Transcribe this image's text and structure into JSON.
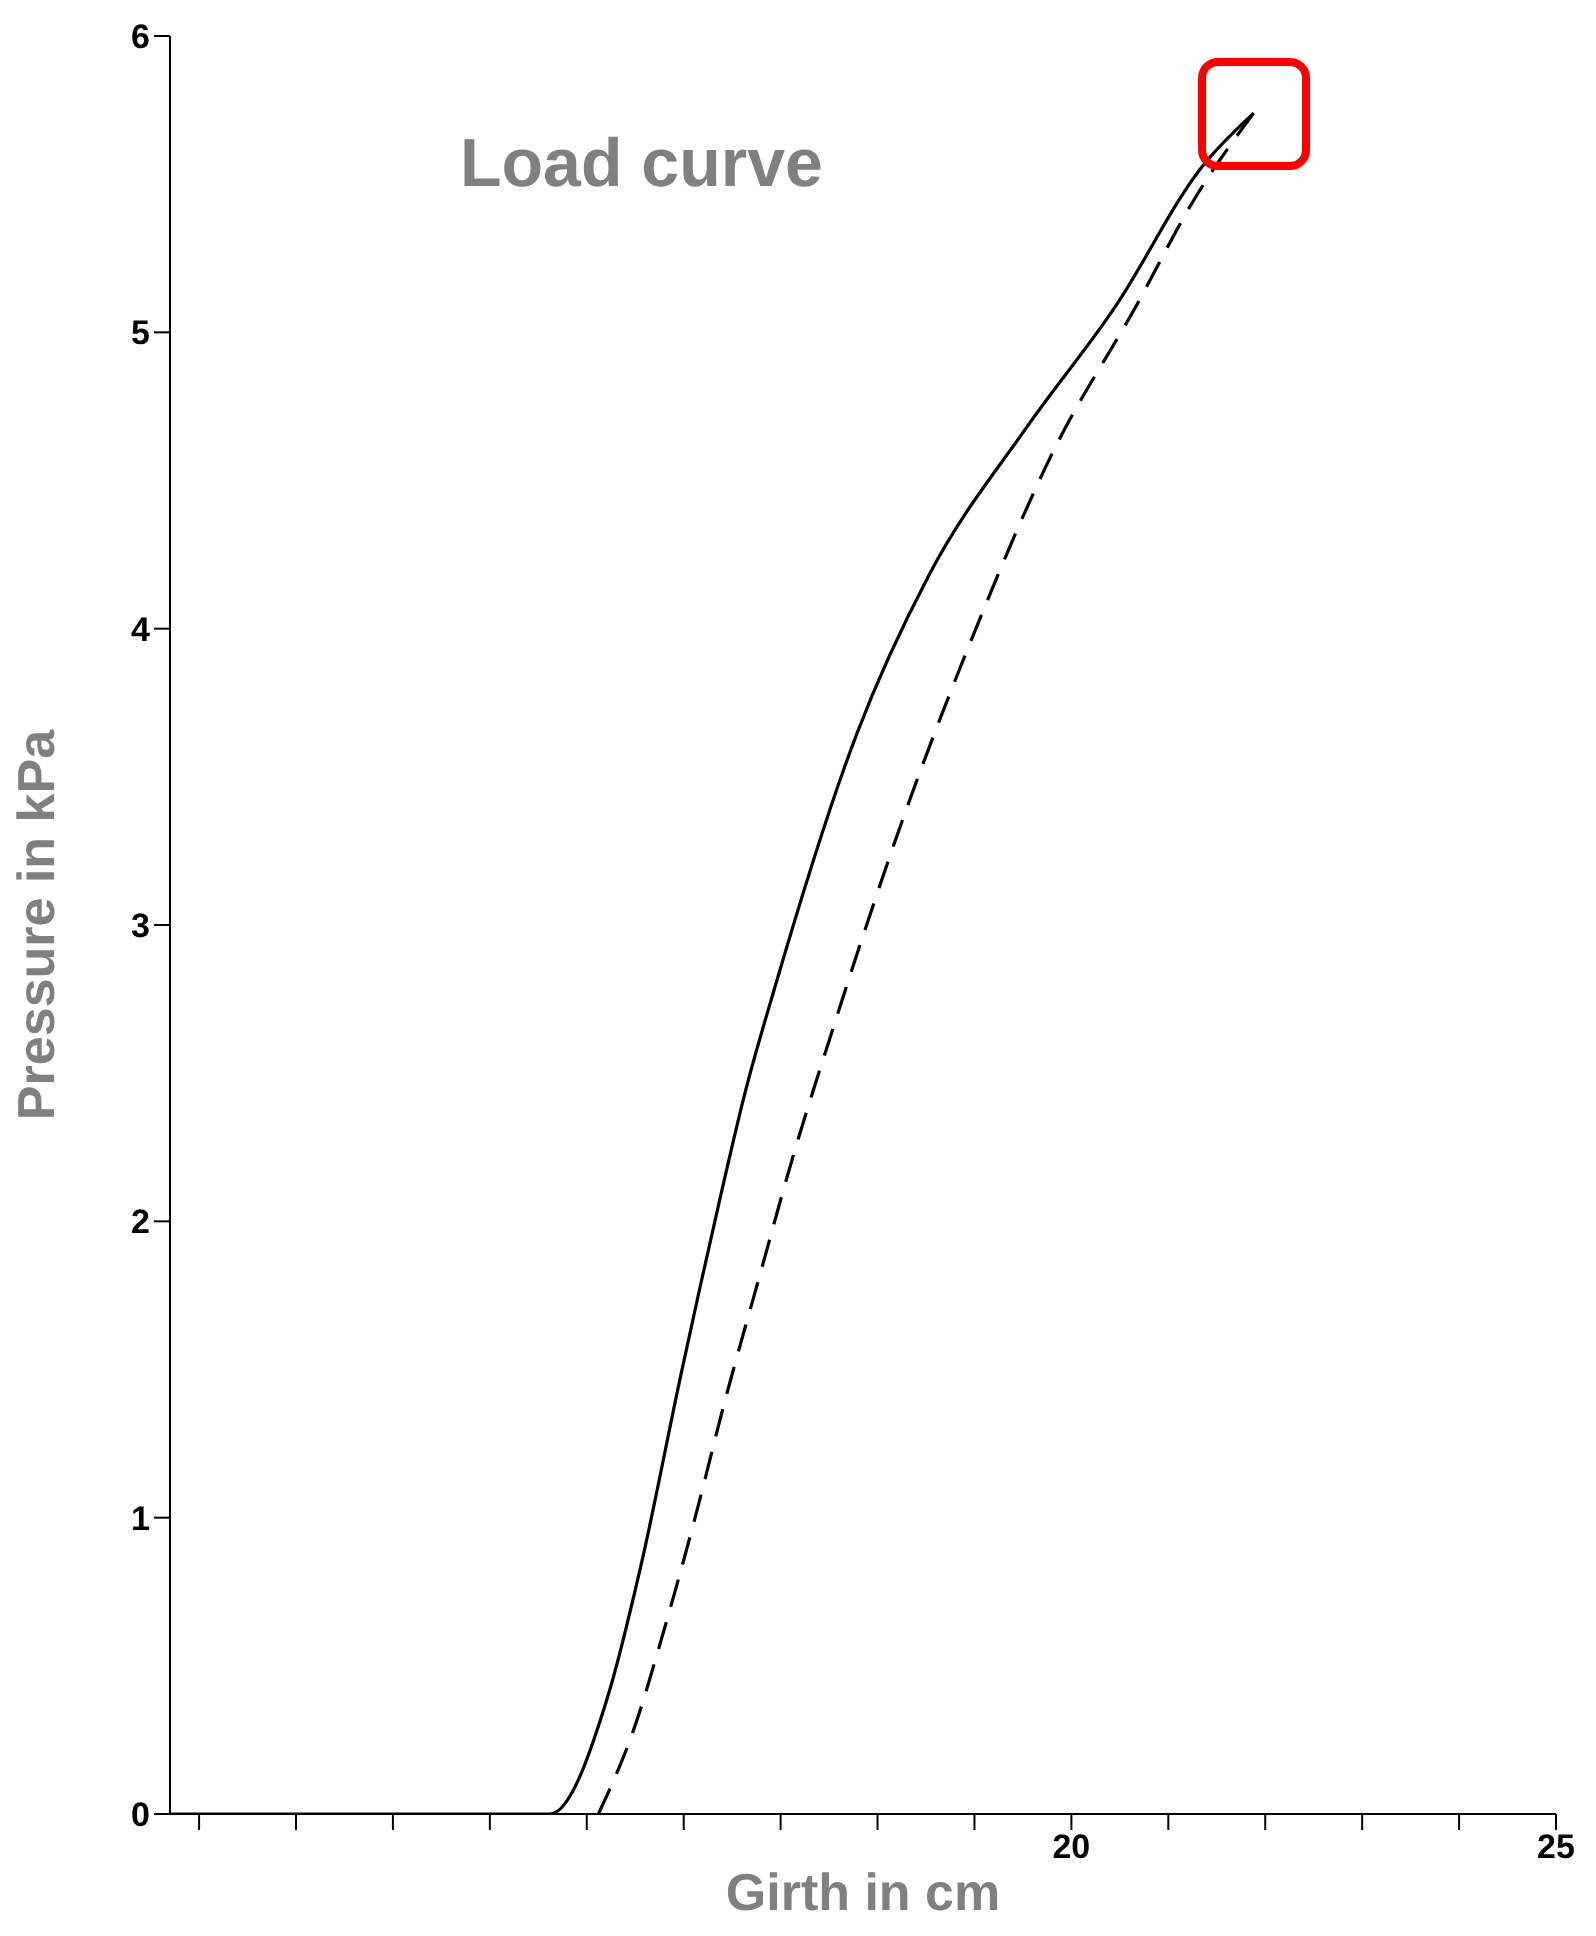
{
  "chart_data": {
    "type": "line",
    "title": "Load curve",
    "xlabel": "Girth in cm",
    "ylabel": "Pressure in kPa",
    "xlim": [
      10.7,
      25
    ],
    "ylim": [
      0,
      6
    ],
    "xticks": [
      {
        "value": 11,
        "label": null
      },
      {
        "value": 12,
        "label": null
      },
      {
        "value": 13,
        "label": null
      },
      {
        "value": 14,
        "label": null
      },
      {
        "value": 15,
        "label": null
      },
      {
        "value": 16,
        "label": null
      },
      {
        "value": 17,
        "label": null
      },
      {
        "value": 18,
        "label": null
      },
      {
        "value": 19,
        "label": null
      },
      20,
      {
        "value": 21,
        "label": null
      },
      {
        "value": 22,
        "label": null
      },
      {
        "value": 23,
        "label": null
      },
      {
        "value": 24,
        "label": null
      },
      25
    ],
    "yticks": [
      0,
      1,
      2,
      3,
      4,
      5,
      6
    ],
    "grid": false,
    "marker": "none",
    "series": [
      {
        "color": "#000000",
        "line_style": "solid",
        "x": [
          10.7,
          14.62,
          15.22,
          15.56,
          15.97,
          16.17,
          16.37,
          16.63,
          16.95,
          17.78,
          18.53,
          19.54,
          20.46,
          21.35,
          21.88
        ],
        "values": [
          0,
          0,
          0.4,
          0.84,
          1.48,
          1.78,
          2.07,
          2.43,
          2.8,
          3.64,
          4.18,
          4.68,
          5.09,
          5.56,
          5.74
        ]
      },
      {
        "color": "#000000",
        "line_style": "dashed",
        "x": [
          15.12,
          15.5,
          15.77,
          16.11,
          16.43,
          16.77,
          17.12,
          17.52,
          18.33,
          18.99,
          19.8,
          20.67,
          21.27,
          21.88
        ],
        "values": [
          0,
          0.3,
          0.59,
          0.99,
          1.4,
          1.8,
          2.21,
          2.63,
          3.42,
          3.98,
          4.59,
          5.09,
          5.45,
          5.74
        ]
      }
    ]
  }
}
